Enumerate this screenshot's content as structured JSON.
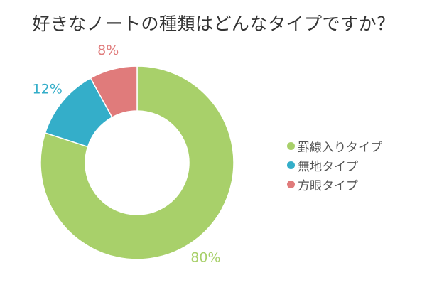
{
  "chart_data": {
    "type": "pie",
    "title": "好きなノートの種類はどんなタイプですか？",
    "donut": true,
    "legend_position": "right",
    "categories": [
      "罫線入りタイプ",
      "無地タイプ",
      "方眼タイプ"
    ],
    "values": [
      80,
      12,
      8
    ],
    "value_labels": [
      "80%",
      "12%",
      "8%"
    ],
    "colors": [
      "#a8d06a",
      "#34aec9",
      "#e07b7b"
    ]
  }
}
